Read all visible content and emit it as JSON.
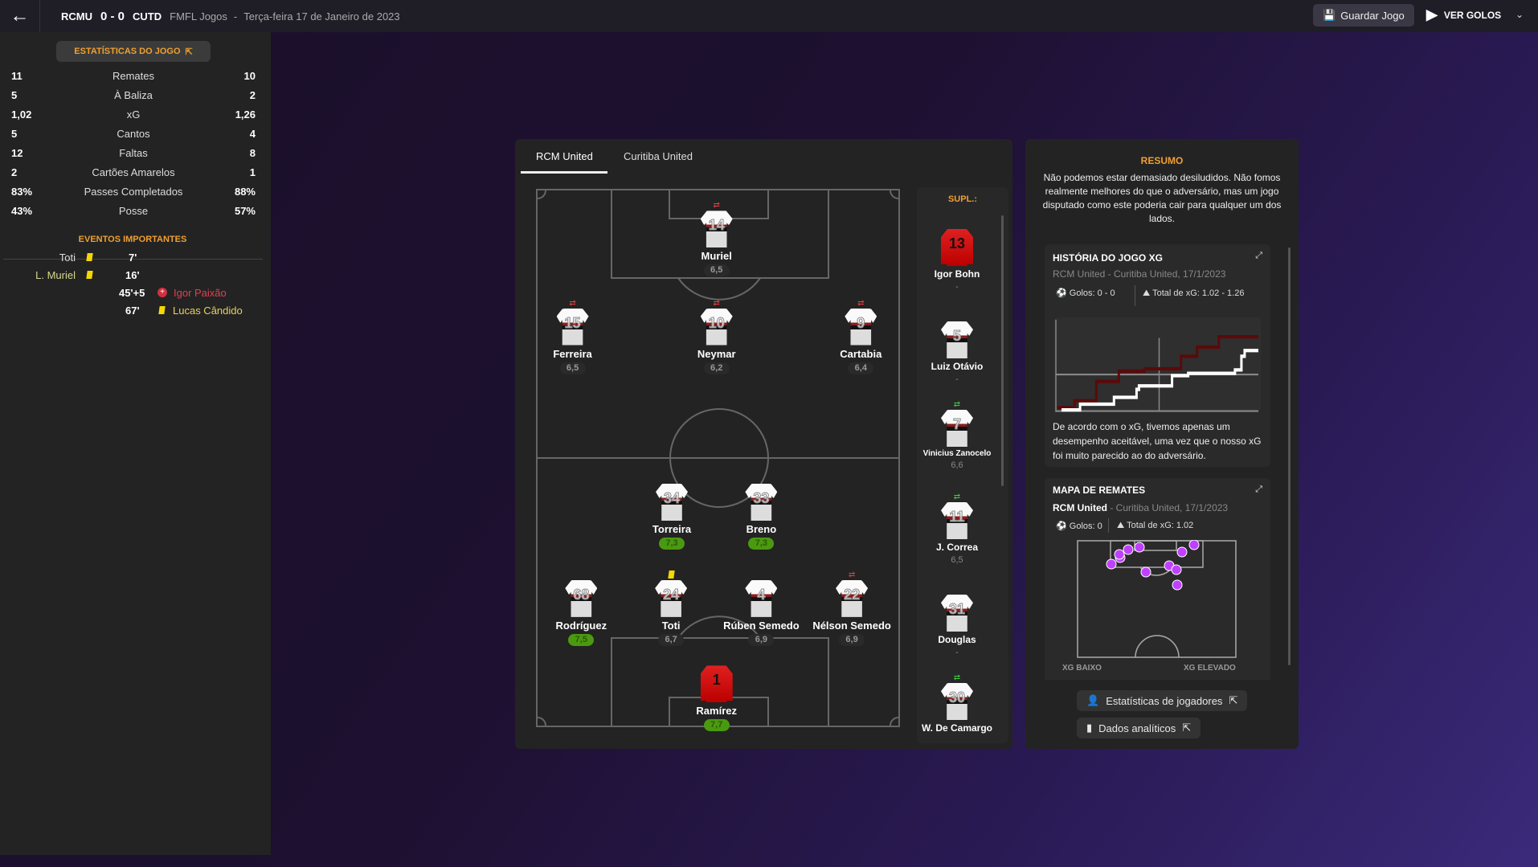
{
  "header": {
    "home": "RCMU",
    "score": "0 - 0",
    "away": "CUTD",
    "competition": "FMFL Jogos",
    "separator": "-",
    "date": "Terça-feira 17 de Janeiro de 2023",
    "save_label": "Guardar Jogo",
    "goals_label": "VER GOLOS"
  },
  "stats": {
    "title": "ESTATÍSTICAS DO JOGO",
    "rows": [
      {
        "label": "Remates",
        "home": "11",
        "away": "10"
      },
      {
        "label": "À Baliza",
        "home": "5",
        "away": "2"
      },
      {
        "label": "xG",
        "home": "1,02",
        "away": "1,26"
      },
      {
        "label": "Cantos",
        "home": "5",
        "away": "4"
      },
      {
        "label": "Faltas",
        "home": "12",
        "away": "8"
      },
      {
        "label": "Cartões Amarelos",
        "home": "2",
        "away": "1"
      },
      {
        "label": "Passes Completados",
        "home": "83%",
        "away": "88%"
      },
      {
        "label": "Posse",
        "home": "43%",
        "away": "57%"
      }
    ]
  },
  "events": {
    "title": "EVENTOS IMPORTANTES",
    "items": [
      {
        "player": "Toti",
        "minute": "7'",
        "type": "yellow-card",
        "side": "home"
      },
      {
        "player": "L. Muriel",
        "minute": "16'",
        "type": "yellow-card",
        "side": "home"
      },
      {
        "player": "Igor Paixão",
        "minute": "45'+5",
        "type": "injury",
        "side": "away"
      },
      {
        "player": "Lucas Cândido",
        "minute": "67'",
        "type": "yellow-card",
        "side": "away"
      }
    ]
  },
  "lineup": {
    "tabs": [
      "RCM United",
      "Curitiba United"
    ],
    "active_tab": 0,
    "players": [
      {
        "name": "Muriel",
        "number": "14",
        "rating": "6,5",
        "subbed_off": true
      },
      {
        "name": "Ferreira",
        "number": "15",
        "rating": "6,5",
        "subbed_off": true
      },
      {
        "name": "Neymar",
        "number": "10",
        "rating": "6,2",
        "subbed_off": true
      },
      {
        "name": "Cartabia",
        "number": "9",
        "rating": "6,4",
        "subbed_off": true
      },
      {
        "name": "Torreira",
        "number": "34",
        "rating": "7,3"
      },
      {
        "name": "Breno",
        "number": "33",
        "rating": "7,3"
      },
      {
        "name": "Rodríguez",
        "number": "68",
        "rating": "7,5"
      },
      {
        "name": "Toti",
        "number": "24",
        "rating": "6,7",
        "yellow_card": true
      },
      {
        "name": "Rúben Semedo",
        "number": "4",
        "rating": "6,9"
      },
      {
        "name": "Nélson Semedo",
        "number": "22",
        "rating": "6,9",
        "subbed_off": true
      },
      {
        "name": "Ramírez",
        "number": "1",
        "rating": "7,7",
        "goalkeeper": true
      }
    ],
    "subs_title": "SUPL.:",
    "subs": [
      {
        "name": "Igor Bohn",
        "number": "13",
        "rating": "-",
        "goalkeeper": true
      },
      {
        "name": "Luiz Otávio",
        "number": "5",
        "rating": "-"
      },
      {
        "name": "Vinicius Zanocelo",
        "number": "7",
        "rating": "6,6",
        "subbed_on": true
      },
      {
        "name": "J. Correa",
        "number": "11",
        "rating": "6,5",
        "subbed_on": true
      },
      {
        "name": "Douglas",
        "number": "31",
        "rating": "-"
      },
      {
        "name": "W. De Camargo",
        "number": "30",
        "subbed_on": true
      }
    ]
  },
  "summary": {
    "title": "RESUMO",
    "text": "Não podemos estar demasiado desiludidos. Não fomos realmente melhores do que o adversário, mas um jogo disputado como este poderia cair para qualquer um dos lados.",
    "xg_story": {
      "title": "HISTÓRIA DO JOGO XG",
      "subtitle": "RCM United - Curitiba United, 17/1/2023",
      "goals": "Golos: 0 - 0",
      "total_xg": "Total de xG: 1.02 - 1.26",
      "text": "De acordo com o xG, tivemos apenas um desempenho aceitável, uma vez que o nosso xG foi muito parecido ao do adversário.",
      "colors": {
        "home": "#ffffff",
        "away": "#5a0a0a"
      }
    },
    "shot_map": {
      "title": "MAPA DE REMATES",
      "team": "RCM United",
      "subtitle": " - Curitiba United, 17/1/2023",
      "goals": "Golos: 0",
      "total_xg": "Total de xG: 1.02",
      "low_label": "XG BAIXO",
      "high_label": "XG ELEVADO",
      "marker_color": "#c040ff"
    },
    "player_stats_label": "Estatísticas de jogadores",
    "analytics_label": "Dados analíticos"
  }
}
